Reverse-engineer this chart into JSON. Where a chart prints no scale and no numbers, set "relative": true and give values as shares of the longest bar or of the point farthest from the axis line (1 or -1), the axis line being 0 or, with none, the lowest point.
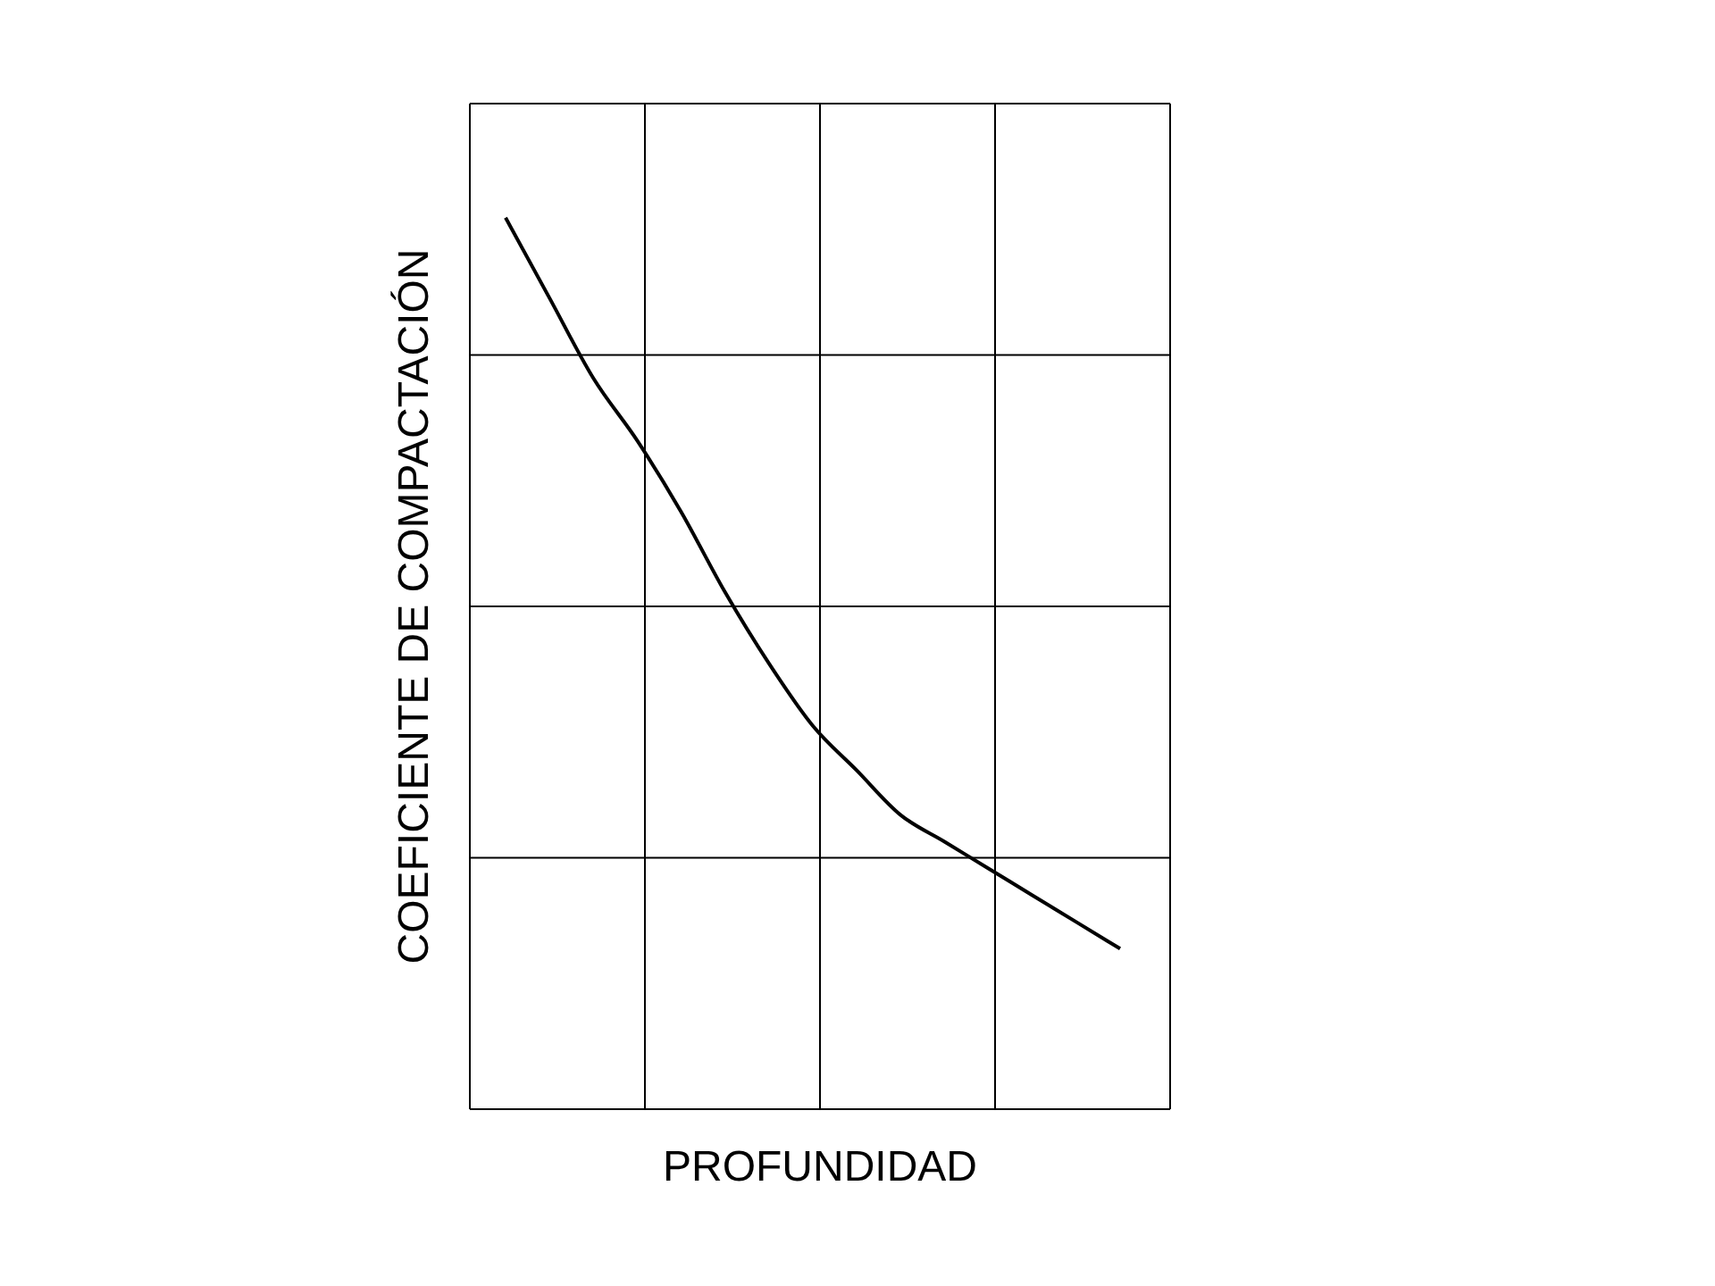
{
  "chart_data": {
    "type": "line",
    "relative": true,
    "xlabel": "PROFUNDIDAD",
    "ylabel": "COEFICIENTE DE COMPACTACIÓN",
    "grid": true,
    "marker": "none",
    "line_style": "solid",
    "legend": false,
    "categories": [
      null,
      null,
      null,
      null,
      null,
      null,
      null,
      null,
      null,
      null,
      null,
      null,
      null,
      null,
      null
    ],
    "series": [
      {
        "color": "#000000",
        "values": [
          1,
          0.91,
          0.82,
          0.75,
          0.67,
          0.58,
          0.5,
          0.43,
          0.38,
          0.33,
          0.3,
          0.27,
          0.24,
          0.21,
          0.18
        ]
      }
    ]
  }
}
